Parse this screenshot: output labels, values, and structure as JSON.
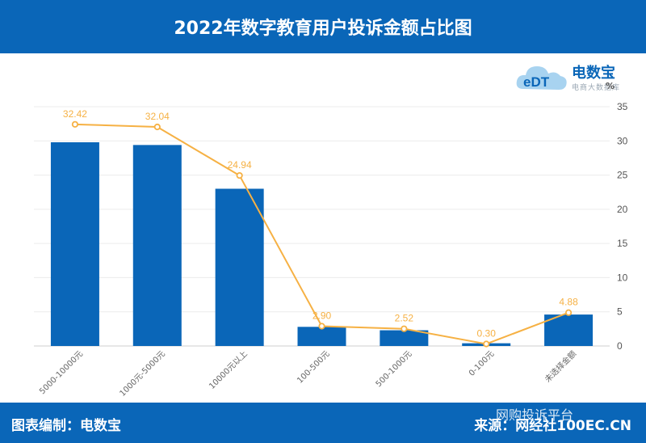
{
  "header": {
    "title": "2022年数字教育用户投诉金额占比图"
  },
  "logo": {
    "name": "电数宝",
    "subtitle": "电商大数据库",
    "letters": "eDT"
  },
  "footer": {
    "left": "图表编制：电数宝",
    "right": "来源：网经社100EC.CN"
  },
  "watermark": "网购投诉平台",
  "colors": {
    "bar": "#0a66b8",
    "line": "#f6b144",
    "header": "#0a66b8"
  },
  "chart_data": {
    "type": "bar",
    "categories": [
      "5000-10000元",
      "1000元-5000元",
      "10000元以上",
      "100-500元",
      "500-1000元",
      "0-100元",
      "未选择金额"
    ],
    "series": [
      {
        "type": "bar",
        "values": [
          29.8,
          29.4,
          23.0,
          2.8,
          2.3,
          0.4,
          4.6
        ]
      },
      {
        "type": "line",
        "values": [
          32.42,
          32.04,
          24.94,
          2.9,
          2.52,
          0.3,
          4.88
        ],
        "labels": [
          "32.42",
          "32.04",
          "24.94",
          "2.90",
          "2.52",
          "0.30",
          "4.88"
        ]
      }
    ],
    "y_axis": {
      "position": "right",
      "unit": "%",
      "ylim": [
        0,
        35
      ],
      "ticks": [
        0,
        5,
        10,
        15,
        20,
        25,
        30,
        35
      ]
    },
    "grid": true
  }
}
